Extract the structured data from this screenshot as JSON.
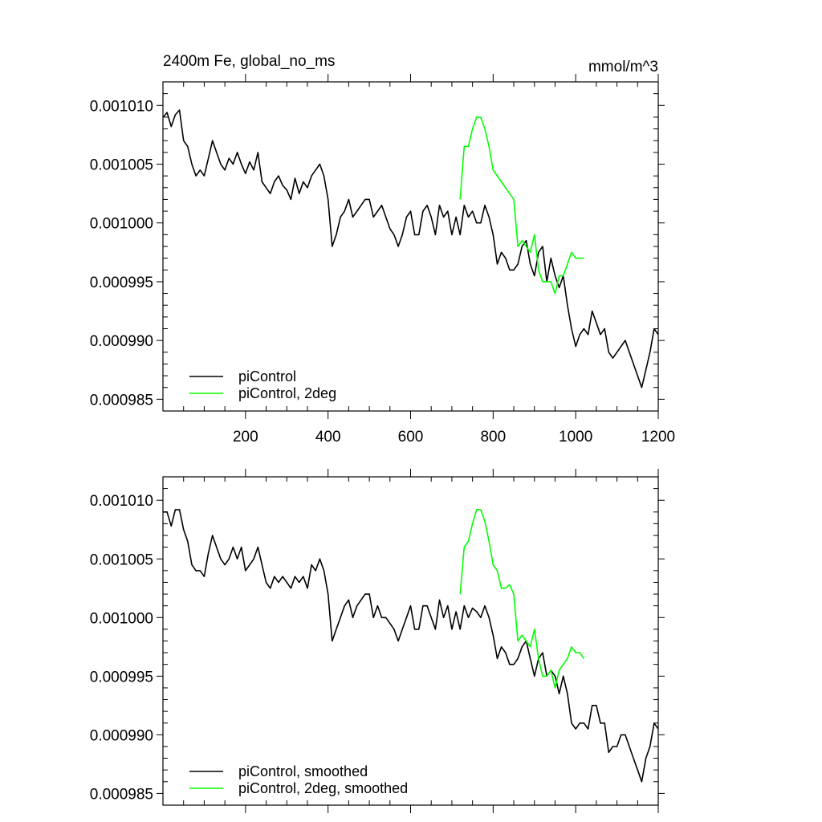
{
  "chart_data": [
    {
      "type": "line",
      "title_left": "2400m Fe, global_no_ms",
      "title_right": "mmol/m^3",
      "xlim": [
        0,
        1200
      ],
      "ylim": [
        0.000984,
        0.001012
      ],
      "xticks": [
        200,
        400,
        600,
        800,
        1000,
        1200
      ],
      "xtick_labels": [
        "200",
        "400",
        "600",
        "800",
        "1000",
        "1200"
      ],
      "yticks": [
        0.00101,
        0.001005,
        0.001,
        0.000995,
        0.00099,
        0.000985
      ],
      "ytick_labels": [
        "0.001010",
        "0.001005",
        "0.001000",
        "0.000995",
        "0.000990",
        "0.000985"
      ],
      "grid": false,
      "legend_position": "bottom-left",
      "series": [
        {
          "name": "piControl",
          "color": "#000000",
          "x": [
            1,
            10,
            20,
            30,
            40,
            50,
            60,
            70,
            80,
            90,
            100,
            110,
            120,
            130,
            140,
            150,
            160,
            170,
            180,
            190,
            200,
            210,
            220,
            230,
            240,
            250,
            260,
            270,
            280,
            290,
            300,
            310,
            320,
            330,
            340,
            350,
            360,
            370,
            380,
            390,
            400,
            410,
            420,
            430,
            440,
            450,
            460,
            470,
            480,
            490,
            500,
            510,
            520,
            530,
            540,
            550,
            560,
            570,
            580,
            590,
            600,
            610,
            620,
            630,
            640,
            650,
            660,
            670,
            680,
            690,
            700,
            710,
            720,
            730,
            740,
            750,
            760,
            770,
            780,
            790,
            800,
            810,
            820,
            830,
            840,
            850,
            860,
            870,
            880,
            890,
            900,
            910,
            920,
            930,
            940,
            950,
            960,
            970,
            980,
            990,
            1000,
            1010,
            1020,
            1030,
            1040,
            1050,
            1060,
            1070,
            1080,
            1090,
            1100,
            1110,
            1120,
            1130,
            1140,
            1150,
            1160,
            1170,
            1180,
            1190,
            1200
          ],
          "y": [
            0.001009,
            0.0010094,
            0.0010082,
            0.0010092,
            0.0010096,
            0.001007,
            0.0010065,
            0.001005,
            0.001004,
            0.0010045,
            0.001004,
            0.0010055,
            0.001007,
            0.001006,
            0.001005,
            0.0010045,
            0.0010055,
            0.001005,
            0.001006,
            0.001005,
            0.0010042,
            0.0010052,
            0.0010045,
            0.001006,
            0.0010035,
            0.001003,
            0.0010025,
            0.0010035,
            0.001004,
            0.0010032,
            0.0010028,
            0.001002,
            0.0010038,
            0.0010025,
            0.0010035,
            0.001003,
            0.001004,
            0.0010045,
            0.001005,
            0.001004,
            0.001002,
            0.000998,
            0.000999,
            0.0010005,
            0.001001,
            0.001002,
            0.0010005,
            0.001001,
            0.0010015,
            0.001002,
            0.001002,
            0.0010005,
            0.001001,
            0.0010015,
            0.0010005,
            0.0009995,
            0.000999,
            0.000998,
            0.000999,
            0.0010005,
            0.001001,
            0.000999,
            0.000999,
            0.001001,
            0.0010015,
            0.0010005,
            0.000999,
            0.0010015,
            0.0010005,
            0.001001,
            0.000999,
            0.0010005,
            0.000999,
            0.0010015,
            0.0010005,
            0.001001,
            0.001,
            0.001,
            0.0010015,
            0.0010005,
            0.000999,
            0.0009965,
            0.0009975,
            0.000997,
            0.000996,
            0.000996,
            0.0009965,
            0.000998,
            0.0009985,
            0.0009965,
            0.0009955,
            0.0009975,
            0.000998,
            0.000995,
            0.000997,
            0.0009955,
            0.0009945,
            0.0009955,
            0.000993,
            0.000991,
            0.0009895,
            0.0009905,
            0.000991,
            0.0009905,
            0.0009925,
            0.0009915,
            0.0009905,
            0.000991,
            0.000989,
            0.0009885,
            0.000989,
            0.0009895,
            0.00099,
            0.000989,
            0.000988,
            0.000987,
            0.000986,
            0.0009875,
            0.000989,
            0.000991,
            0.0009905
          ]
        },
        {
          "name": "piControl, 2deg",
          "color": "#00ff00",
          "x": [
            720,
            730,
            740,
            750,
            760,
            770,
            780,
            790,
            800,
            810,
            820,
            830,
            840,
            850,
            860,
            870,
            880,
            890,
            900,
            910,
            920,
            930,
            940,
            950,
            960,
            970,
            980,
            990,
            1000,
            1010,
            1020
          ],
          "y": [
            0.001002,
            0.0010065,
            0.0010065,
            0.001008,
            0.001009,
            0.001009,
            0.001008,
            0.0010065,
            0.0010045,
            0.001004,
            0.0010035,
            0.001003,
            0.0010025,
            0.001002,
            0.000998,
            0.0009985,
            0.000998,
            0.0009975,
            0.000999,
            0.000996,
            0.000995,
            0.000995,
            0.000995,
            0.000994,
            0.0009955,
            0.0009955,
            0.0009965,
            0.0009975,
            0.000997,
            0.000997,
            0.000997
          ]
        }
      ]
    },
    {
      "type": "line",
      "xlim": [
        0,
        1200
      ],
      "ylim": [
        0.000984,
        0.001012
      ],
      "yticks": [
        0.00101,
        0.001005,
        0.001,
        0.000995,
        0.00099,
        0.000985
      ],
      "ytick_labels": [
        "0.001010",
        "0.001005",
        "0.001000",
        "0.000995",
        "0.000990",
        "0.000985"
      ],
      "grid": false,
      "legend_position": "bottom-left",
      "series": [
        {
          "name": "piControl, smoothed",
          "color": "#000000",
          "x": [
            1,
            10,
            20,
            30,
            40,
            50,
            60,
            70,
            80,
            90,
            100,
            110,
            120,
            130,
            140,
            150,
            160,
            170,
            180,
            190,
            200,
            210,
            220,
            230,
            240,
            250,
            260,
            270,
            280,
            290,
            300,
            310,
            320,
            330,
            340,
            350,
            360,
            370,
            380,
            390,
            400,
            410,
            420,
            430,
            440,
            450,
            460,
            470,
            480,
            490,
            500,
            510,
            520,
            530,
            540,
            550,
            560,
            570,
            580,
            590,
            600,
            610,
            620,
            630,
            640,
            650,
            660,
            670,
            680,
            690,
            700,
            710,
            720,
            730,
            740,
            750,
            760,
            770,
            780,
            790,
            800,
            810,
            820,
            830,
            840,
            850,
            860,
            870,
            880,
            890,
            900,
            910,
            920,
            930,
            940,
            950,
            960,
            970,
            980,
            990,
            1000,
            1010,
            1020,
            1030,
            1040,
            1050,
            1060,
            1070,
            1080,
            1090,
            1100,
            1110,
            1120,
            1130,
            1140,
            1150,
            1160,
            1170,
            1180,
            1190,
            1200
          ],
          "y": [
            0.001009,
            0.001009,
            0.0010078,
            0.0010092,
            0.0010092,
            0.0010075,
            0.0010065,
            0.0010045,
            0.001004,
            0.001004,
            0.0010035,
            0.0010055,
            0.001007,
            0.001006,
            0.001005,
            0.0010045,
            0.001005,
            0.001006,
            0.001005,
            0.001006,
            0.001004,
            0.0010045,
            0.001005,
            0.001006,
            0.0010045,
            0.001003,
            0.0010025,
            0.0010035,
            0.001003,
            0.0010035,
            0.001003,
            0.0010025,
            0.0010035,
            0.001003,
            0.0010035,
            0.0010025,
            0.0010045,
            0.001004,
            0.001005,
            0.001004,
            0.001002,
            0.000998,
            0.000999,
            0.001,
            0.001001,
            0.0010015,
            0.001,
            0.001001,
            0.0010015,
            0.001002,
            0.001002,
            0.001,
            0.001001,
            0.001,
            0.001,
            0.0009995,
            0.000999,
            0.000998,
            0.000999,
            0.001,
            0.001001,
            0.000999,
            0.000999,
            0.001001,
            0.001001,
            0.001,
            0.000999,
            0.0010015,
            0.001,
            0.001001,
            0.000999,
            0.0010005,
            0.000999,
            0.001001,
            0.001,
            0.0010008,
            0.0010005,
            0.001,
            0.001001,
            0.001,
            0.0009985,
            0.0009965,
            0.0009975,
            0.000997,
            0.000996,
            0.000996,
            0.0009965,
            0.0009975,
            0.000998,
            0.0009965,
            0.000995,
            0.0009965,
            0.000997,
            0.000995,
            0.0009955,
            0.000995,
            0.0009935,
            0.000995,
            0.0009935,
            0.000991,
            0.0009905,
            0.000991,
            0.000991,
            0.0009905,
            0.0009925,
            0.0009925,
            0.000991,
            0.000991,
            0.0009885,
            0.000989,
            0.000989,
            0.00099,
            0.00099,
            0.000989,
            0.000988,
            0.000987,
            0.000986,
            0.000988,
            0.000989,
            0.000991,
            0.0009905
          ]
        },
        {
          "name": "piControl, 2deg, smoothed",
          "color": "#00ff00",
          "x": [
            720,
            730,
            740,
            750,
            760,
            770,
            780,
            790,
            800,
            810,
            820,
            830,
            840,
            850,
            860,
            870,
            880,
            890,
            900,
            910,
            920,
            930,
            940,
            950,
            960,
            970,
            980,
            990,
            1000,
            1010,
            1020
          ],
          "y": [
            0.001002,
            0.001006,
            0.0010065,
            0.001008,
            0.0010092,
            0.0010092,
            0.0010082,
            0.0010065,
            0.0010045,
            0.001004,
            0.0010025,
            0.0010025,
            0.0010028,
            0.001002,
            0.000998,
            0.0009985,
            0.000998,
            0.0009975,
            0.000999,
            0.0009965,
            0.000995,
            0.000995,
            0.0009955,
            0.000994,
            0.0009955,
            0.000996,
            0.0009965,
            0.0009975,
            0.000997,
            0.000997,
            0.0009965
          ]
        }
      ]
    }
  ]
}
